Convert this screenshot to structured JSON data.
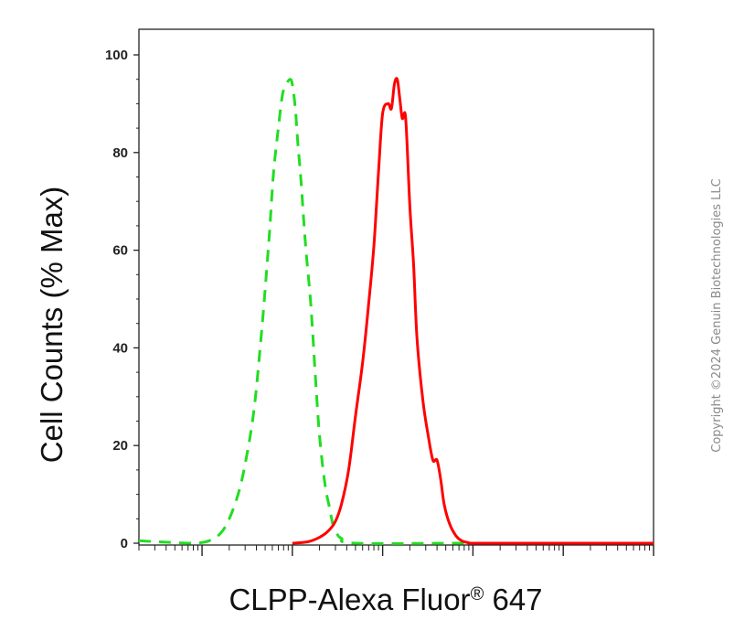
{
  "chart_data": {
    "type": "line",
    "title": "",
    "xlabel": "CLPP-Alexa Fluor",
    "xlabel_superscript": "®",
    "xlabel_suffix": " 647",
    "ylabel": "Cell Counts (% Max)",
    "xscale": "log",
    "xlim": [
      20,
      10000000
    ],
    "ylim": [
      0,
      100
    ],
    "y_ticks": [
      0,
      20,
      40,
      60,
      80,
      100
    ],
    "y_tick_labels": [
      "0",
      "20",
      "40",
      "60",
      "80",
      "100"
    ],
    "x_tick_labels_shown": false,
    "grid": false,
    "legend": "none",
    "series": [
      {
        "style": "dashed",
        "color": "#22dd22",
        "x": [
          20,
          40,
          80,
          120,
          160,
          200,
          260,
          320,
          380,
          440,
          500,
          560,
          620,
          700,
          780,
          860,
          940,
          1000,
          1080,
          1150,
          1250,
          1400,
          1600,
          1800,
          2000,
          2300,
          2600,
          2800,
          3100,
          3500,
          5000,
          100000,
          10000000
        ],
        "y": [
          0.5,
          0.2,
          0.0,
          0.5,
          2,
          5,
          11,
          19,
          28,
          40,
          52,
          64,
          76,
          85,
          92,
          94,
          95,
          94,
          89,
          82,
          74,
          61,
          49,
          34,
          22,
          12,
          7,
          4,
          2,
          1,
          0,
          0,
          0
        ]
      },
      {
        "style": "solid",
        "color": "#ff0000",
        "x": [
          1000,
          1500,
          2000,
          2500,
          3000,
          3500,
          4200,
          5000,
          6000,
          7000,
          8000,
          9000,
          10000,
          11500,
          12500,
          13500,
          14500,
          15500,
          16500,
          18000,
          20000,
          22000,
          24000,
          28000,
          32000,
          36000,
          40000,
          44000,
          48000,
          55000,
          65000,
          75000,
          90000,
          110000,
          1000000,
          10000000
        ],
        "y": [
          0.0,
          0.3,
          1.2,
          2.5,
          4.5,
          8,
          15,
          26,
          37,
          49,
          61,
          76,
          88,
          90,
          89,
          94,
          95,
          91,
          87,
          87,
          69,
          57,
          42,
          29,
          22,
          17,
          17,
          13,
          8,
          4,
          1.5,
          0.5,
          0.1,
          0,
          0,
          0
        ]
      }
    ]
  },
  "watermark": "Copyright ©2024 Genuin Biotechnologies LLC"
}
